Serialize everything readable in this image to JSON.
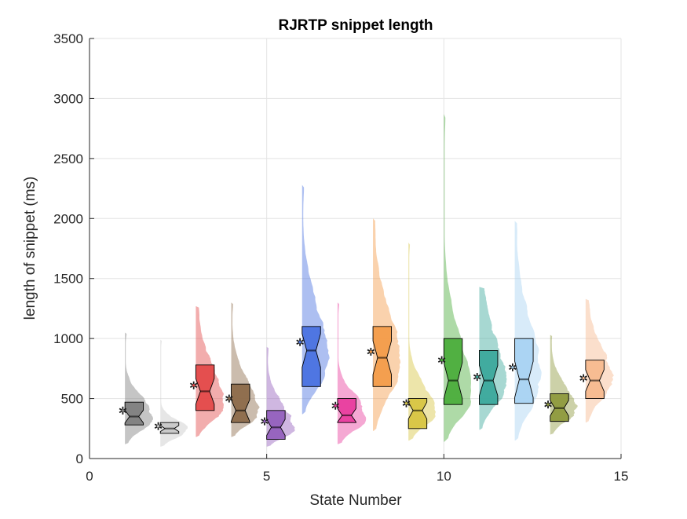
{
  "chart_data": {
    "type": "raincloud",
    "title": "RJRTP snippet length",
    "xlabel": "State Number",
    "ylabel": "length of snippet (ms)",
    "xlim": [
      0,
      15
    ],
    "ylim": [
      0,
      3500
    ],
    "xticks": [
      0,
      5,
      10,
      15
    ],
    "yticks": [
      0,
      500,
      1000,
      1500,
      2000,
      2500,
      3000,
      3500
    ],
    "grid": true,
    "groups": [
      {
        "state": 1,
        "color": "#7f7f7f",
        "mean": 400,
        "median": 350,
        "q1": 280,
        "q3": 470,
        "min": 120,
        "max": 1050,
        "mode": 340
      },
      {
        "state": 2,
        "color": "#c8c8c8",
        "mean": 270,
        "median": 250,
        "q1": 210,
        "q3": 300,
        "min": 100,
        "max": 990,
        "mode": 240
      },
      {
        "state": 3,
        "color": "#e34a4a",
        "mean": 610,
        "median": 560,
        "q1": 400,
        "q3": 780,
        "min": 180,
        "max": 1270,
        "mode": 430
      },
      {
        "state": 4,
        "color": "#8c6a4a",
        "mean": 500,
        "median": 400,
        "q1": 300,
        "q3": 620,
        "min": 180,
        "max": 1300,
        "mode": 360
      },
      {
        "state": 5,
        "color": "#9460bd",
        "mean": 310,
        "median": 260,
        "q1": 160,
        "q3": 400,
        "min": 100,
        "max": 930,
        "mode": 230
      },
      {
        "state": 6,
        "color": "#4a72e0",
        "mean": 970,
        "median": 900,
        "q1": 600,
        "q3": 1100,
        "min": 370,
        "max": 2280,
        "mode": 800
      },
      {
        "state": 7,
        "color": "#e83d9e",
        "mean": 440,
        "median": 360,
        "q1": 300,
        "q3": 500,
        "min": 120,
        "max": 1300,
        "mode": 340
      },
      {
        "state": 8,
        "color": "#f39c4a",
        "mean": 890,
        "median": 840,
        "q1": 600,
        "q3": 1100,
        "min": 230,
        "max": 2000,
        "mode": 780
      },
      {
        "state": 9,
        "color": "#d8c542",
        "mean": 460,
        "median": 400,
        "q1": 250,
        "q3": 500,
        "min": 150,
        "max": 1800,
        "mode": 380
      },
      {
        "state": 10,
        "color": "#4cae3c",
        "mean": 820,
        "median": 650,
        "q1": 450,
        "q3": 1000,
        "min": 140,
        "max": 2870,
        "mode": 500
      },
      {
        "state": 11,
        "color": "#3ba99c",
        "mean": 680,
        "median": 650,
        "q1": 450,
        "q3": 900,
        "min": 240,
        "max": 1430,
        "mode": 600
      },
      {
        "state": 12,
        "color": "#a9d3f2",
        "mean": 760,
        "median": 660,
        "q1": 460,
        "q3": 1000,
        "min": 150,
        "max": 1980,
        "mode": 650
      },
      {
        "state": 13,
        "color": "#8e9a3d",
        "mean": 450,
        "median": 420,
        "q1": 310,
        "q3": 540,
        "min": 200,
        "max": 1030,
        "mode": 400
      },
      {
        "state": 14,
        "color": "#f7b98e",
        "mean": 670,
        "median": 650,
        "q1": 500,
        "q3": 820,
        "min": 300,
        "max": 1330,
        "mode": 640
      }
    ]
  }
}
